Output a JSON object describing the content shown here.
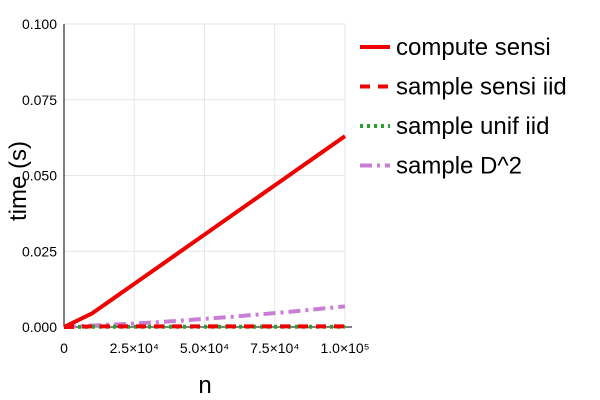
{
  "chart_data": {
    "type": "line",
    "title": "",
    "xlabel": "n",
    "ylabel": "time (s)",
    "xlim": [
      0,
      100000
    ],
    "ylim": [
      0,
      0.1
    ],
    "grid": true,
    "legend_position": "top-right (outside plot)",
    "x_ticks": [
      {
        "value": 0,
        "label": "0"
      },
      {
        "value": 25000,
        "label": "2.5×10⁴"
      },
      {
        "value": 50000,
        "label": "5.0×10⁴"
      },
      {
        "value": 75000,
        "label": "7.5×10⁴"
      },
      {
        "value": 100000,
        "label": "1.0×10⁵"
      }
    ],
    "y_ticks": [
      {
        "value": 0,
        "label": "0.000"
      },
      {
        "value": 0.025,
        "label": "0.025"
      },
      {
        "value": 0.05,
        "label": "0.050"
      },
      {
        "value": 0.075,
        "label": "0.075"
      },
      {
        "value": 0.1,
        "label": "0.100"
      }
    ],
    "x": [
      0,
      10000,
      20000,
      30000,
      40000,
      50000,
      60000,
      70000,
      80000,
      90000,
      100000
    ],
    "series": [
      {
        "name": "compute sensi",
        "color": "#ee0000",
        "dash": "solid",
        "values": [
          0.0,
          0.0045,
          0.011,
          0.0175,
          0.024,
          0.0305,
          0.037,
          0.0435,
          0.05,
          0.0565,
          0.063
        ]
      },
      {
        "name": "sample sensi iid",
        "color": "#ee0000",
        "dash": "dash",
        "values": [
          0.0,
          0.0002,
          0.0002,
          0.0002,
          0.0002,
          0.0002,
          0.0002,
          0.0002,
          0.0002,
          0.0002,
          0.0002
        ]
      },
      {
        "name": "sample unif iid",
        "color": "#2ca02c",
        "dash": "dot",
        "values": [
          0.0,
          0.0001,
          0.0001,
          0.0001,
          0.0001,
          0.0001,
          0.0001,
          0.0001,
          0.0001,
          0.0001,
          0.0001
        ]
      },
      {
        "name": "sample D^2",
        "color": "#c77ed4",
        "dash": "dashdot",
        "values": [
          0.0,
          0.0005,
          0.0009,
          0.0014,
          0.002,
          0.0027,
          0.0034,
          0.0042,
          0.005,
          0.0059,
          0.0068
        ]
      }
    ]
  }
}
